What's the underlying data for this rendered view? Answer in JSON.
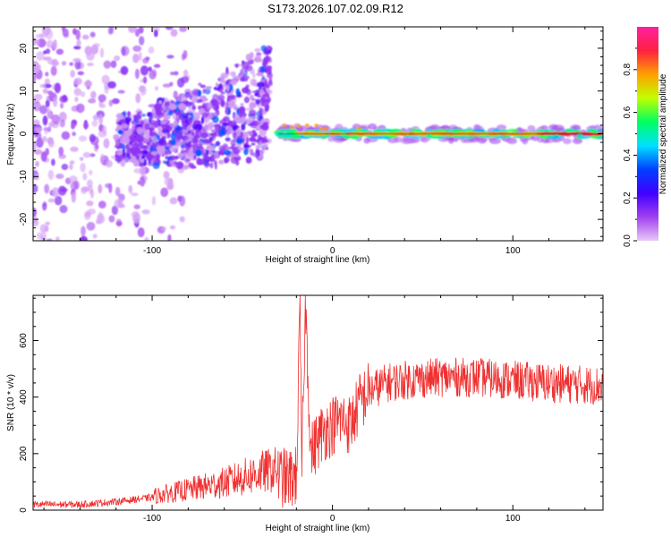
{
  "title": "S173.2026.107.02.09.R12",
  "chart_data": [
    {
      "type": "heatmap",
      "xlabel": "Height of straight line (km)",
      "ylabel": "Frequency (Hz)",
      "xlim": [
        -166,
        150
      ],
      "ylim": [
        -25,
        25
      ],
      "xticks": [
        -100,
        0,
        100
      ],
      "yticks": [
        -20,
        -10,
        0,
        10,
        20
      ],
      "colorbar": {
        "label": "Normalized spectral amplitude",
        "range": [
          0,
          1
        ],
        "ticks": [
          "0.0",
          "0.2",
          "0.4",
          "0.6",
          "0.8"
        ],
        "colors": [
          "#e8c8f8",
          "#a040f0",
          "#4000ff",
          "#0040ff",
          "#00e0ff",
          "#00ff60",
          "#c0ff00",
          "#ffa000",
          "#ff2040",
          "#ff20a0"
        ]
      },
      "features": {
        "noise_region_x": [
          -166,
          -100
        ],
        "chirp_x": [
          -120,
          -35
        ],
        "chirp_peak_freq": 17,
        "carrier_x": [
          -30,
          150
        ],
        "carrier_freq": 0
      }
    },
    {
      "type": "line",
      "xlabel": "Height of straight line (km)",
      "ylabel": "SNR (10 * v/v)",
      "xlim": [
        -166,
        150
      ],
      "ylim": [
        0,
        760
      ],
      "xticks": [
        -100,
        0,
        100
      ],
      "yticks": [
        0,
        200,
        400,
        600
      ],
      "series": [
        {
          "name": "SNR",
          "color": "#f03030",
          "x": [
            -166,
            -140,
            -120,
            -100,
            -80,
            -60,
            -40,
            -30,
            -25,
            -20,
            -18,
            -17,
            -15,
            -12,
            -8,
            -5,
            0,
            5,
            10,
            15,
            20,
            30,
            40,
            60,
            80,
            100,
            120,
            150
          ],
          "y": [
            15,
            15,
            25,
            40,
            60,
            80,
            110,
            120,
            110,
            120,
            700,
            150,
            740,
            200,
            250,
            280,
            300,
            320,
            300,
            380,
            420,
            450,
            460,
            470,
            470,
            460,
            450,
            440
          ]
        }
      ]
    }
  ]
}
